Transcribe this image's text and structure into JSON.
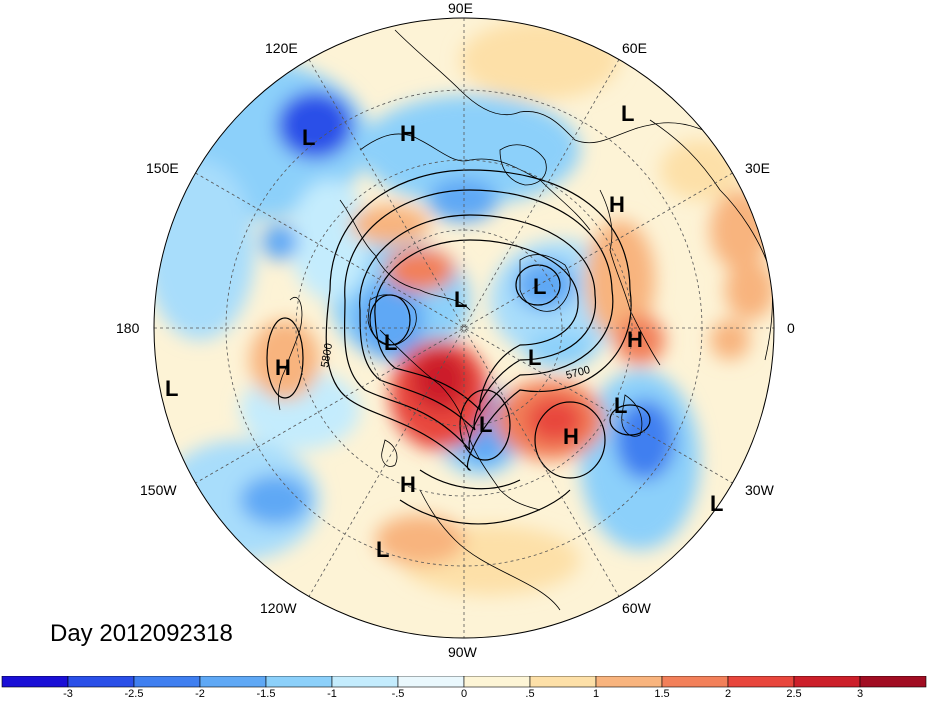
{
  "date_label": "Day 2012092318",
  "longitude_labels": [
    "90E",
    "60E",
    "30E",
    "0",
    "30W",
    "60W",
    "90W",
    "120W",
    "150W",
    "180",
    "150E",
    "120E"
  ],
  "contour_labels": [
    "5800",
    "5700"
  ],
  "pressure_centers": [
    {
      "letter": "L"
    },
    {
      "letter": "H"
    },
    {
      "letter": "L"
    },
    {
      "letter": "H"
    },
    {
      "letter": "L"
    },
    {
      "letter": "L"
    },
    {
      "letter": "L"
    },
    {
      "letter": "H"
    },
    {
      "letter": "H"
    },
    {
      "letter": "L"
    },
    {
      "letter": "L"
    },
    {
      "letter": "L"
    },
    {
      "letter": "H"
    },
    {
      "letter": "H"
    },
    {
      "letter": "L"
    },
    {
      "letter": "L"
    }
  ],
  "colorbar": {
    "tick_labels": [
      "-3",
      "-2.5",
      "-2",
      "-1.5",
      "-1",
      "-.5",
      "0",
      ".5",
      "1",
      "1.5",
      "2",
      "2.5",
      "3"
    ],
    "colors": [
      "#1a0fd6",
      "#2a4fe8",
      "#3f7ff0",
      "#5fa8f5",
      "#8cd0fa",
      "#c4ecfd",
      "#eaf8fd",
      "#fdf5d6",
      "#fde0a8",
      "#f8b47e",
      "#f2805a",
      "#e8463c",
      "#cc1f2a",
      "#a10d22"
    ]
  }
}
